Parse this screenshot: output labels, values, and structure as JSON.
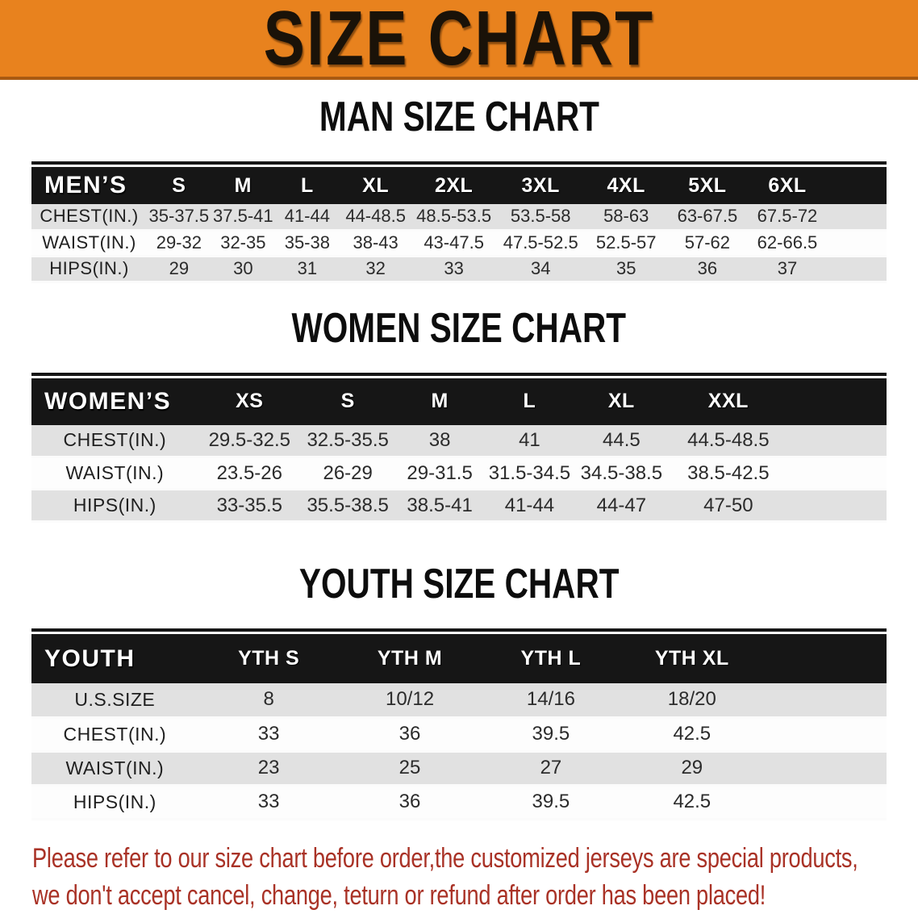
{
  "banner": {
    "title": "SIZE CHART"
  },
  "sections": [
    {
      "heading": "MAN SIZE CHART",
      "table": {
        "label": "MEN’S",
        "columns": [
          "S",
          "M",
          "L",
          "XL",
          "2XL",
          "3XL",
          "4XL",
          "5XL",
          "6XL"
        ],
        "rows": [
          {
            "label": "CHEST(IN.)",
            "values": [
              "35-37.5",
              "37.5-41",
              "41-44",
              "44-48.5",
              "48.5-53.5",
              "53.5-58",
              "58-63",
              "63-67.5",
              "67.5-72"
            ]
          },
          {
            "label": "WAIST(IN.)",
            "values": [
              "29-32",
              "32-35",
              "35-38",
              "38-43",
              "43-47.5",
              "47.5-52.5",
              "52.5-57",
              "57-62",
              "62-66.5"
            ]
          },
          {
            "label": "HIPS(IN.)",
            "values": [
              "29",
              "30",
              "31",
              "32",
              "33",
              "34",
              "35",
              "36",
              "37"
            ]
          }
        ]
      }
    },
    {
      "heading": "WOMEN SIZE CHART",
      "table": {
        "label": "WOMEN’S",
        "columns": [
          "XS",
          "S",
          "M",
          "L",
          "XL",
          "XXL"
        ],
        "rows": [
          {
            "label": "CHEST(IN.)",
            "values": [
              "29.5-32.5",
              "32.5-35.5",
              "38",
              "41",
              "44.5",
              "44.5-48.5"
            ]
          },
          {
            "label": "WAIST(IN.)",
            "values": [
              "23.5-26",
              "26-29",
              "29-31.5",
              "31.5-34.5",
              "34.5-38.5",
              "38.5-42.5"
            ]
          },
          {
            "label": "HIPS(IN.)",
            "values": [
              "33-35.5",
              "35.5-38.5",
              "38.5-41",
              "41-44",
              "44-47",
              "47-50"
            ]
          }
        ]
      }
    },
    {
      "heading": "YOUTH SIZE CHART",
      "table": {
        "label": "YOUTH",
        "columns": [
          "YTH S",
          "YTH M",
          "YTH L",
          "YTH XL"
        ],
        "rows": [
          {
            "label": "U.S.SIZE",
            "values": [
              "8",
              "10/12",
              "14/16",
              "18/20"
            ]
          },
          {
            "label": "CHEST(IN.)",
            "values": [
              "33",
              "36",
              "39.5",
              "42.5"
            ]
          },
          {
            "label": "WAIST(IN.)",
            "values": [
              "23",
              "25",
              "27",
              "29"
            ]
          },
          {
            "label": "HIPS(IN.)",
            "values": [
              "33",
              "36",
              "39.5",
              "42.5"
            ]
          }
        ]
      }
    }
  ],
  "footer": {
    "line1": "Please refer to our size chart before order,the customized jerseys are special products,",
    "line2": "we don't accept cancel, change, teturn or refund after order has been placed!"
  },
  "colors": {
    "banner_bg": "#E8821E",
    "banner_edge": "#A85A12",
    "header_band": "#161616",
    "row_stripe": "#E1E1E1",
    "note_text": "#A93226"
  }
}
